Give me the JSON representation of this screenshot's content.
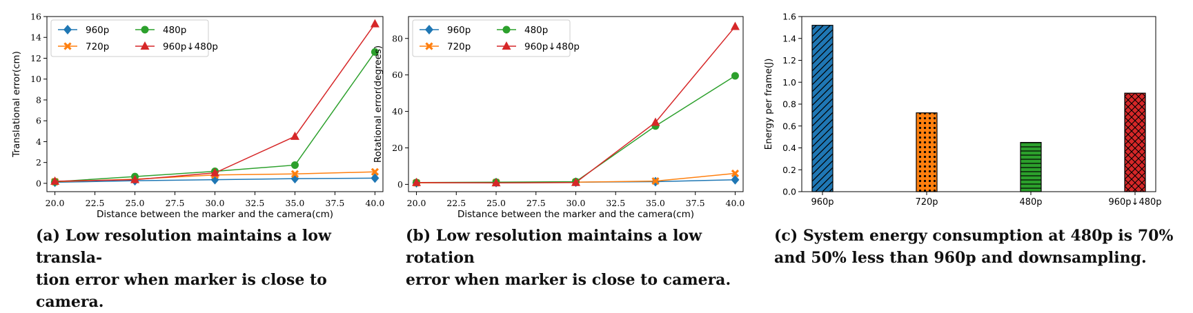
{
  "chart_data": [
    {
      "type": "line",
      "xlabel": "Distance between the marker and the camera(cm)",
      "ylabel": "Translational error(cm)",
      "xlim": [
        19.5,
        40.5
      ],
      "ylim": [
        -0.8,
        16
      ],
      "xticks": [
        "20.0",
        "22.5",
        "25.0",
        "27.5",
        "30.0",
        "32.5",
        "35.0",
        "37.5",
        "40.0"
      ],
      "yticks": [
        "0",
        "2",
        "4",
        "6",
        "8",
        "10",
        "12",
        "14",
        "16"
      ],
      "grid": false,
      "legend": "top-left",
      "x": [
        20,
        25,
        30,
        35,
        40
      ],
      "series": [
        {
          "name": "960p",
          "color": "#1f77b4",
          "marker": "diamond",
          "values": [
            0.1,
            0.25,
            0.35,
            0.45,
            0.5
          ]
        },
        {
          "name": "720p",
          "color": "#ff7f0e",
          "marker": "x",
          "values": [
            0.15,
            0.4,
            0.8,
            0.9,
            1.1
          ]
        },
        {
          "name": "480p",
          "color": "#2ca02c",
          "marker": "circle",
          "values": [
            0.15,
            0.65,
            1.15,
            1.75,
            12.6
          ]
        },
        {
          "name": "960p↓480p",
          "color": "#d62728",
          "marker": "triangle",
          "values": [
            0.2,
            0.35,
            1.0,
            4.5,
            15.3
          ]
        }
      ]
    },
    {
      "type": "line",
      "xlabel": "Distance between the marker and the camera(cm)",
      "ylabel": "Rotational error(degrees)",
      "xlim": [
        19.5,
        40.5
      ],
      "ylim": [
        -4,
        92
      ],
      "xticks": [
        "20.0",
        "22.5",
        "25.0",
        "27.5",
        "30.0",
        "32.5",
        "35.0",
        "37.5",
        "40.0"
      ],
      "yticks": [
        "0",
        "20",
        "40",
        "60",
        "80"
      ],
      "grid": false,
      "legend": "top-left",
      "x": [
        20,
        25,
        30,
        35,
        40
      ],
      "series": [
        {
          "name": "960p",
          "color": "#1f77b4",
          "marker": "diamond",
          "values": [
            0.8,
            1.0,
            1.2,
            1.5,
            2.5
          ]
        },
        {
          "name": "720p",
          "color": "#ff7f0e",
          "marker": "x",
          "values": [
            0.8,
            1.0,
            1.2,
            1.8,
            6.0
          ]
        },
        {
          "name": "480p",
          "color": "#2ca02c",
          "marker": "circle",
          "values": [
            1.0,
            1.2,
            1.5,
            32.0,
            59.5
          ]
        },
        {
          "name": "960p↓480p",
          "color": "#d62728",
          "marker": "triangle",
          "values": [
            1.0,
            0.8,
            1.0,
            34.0,
            86.5
          ]
        }
      ]
    },
    {
      "type": "bar",
      "ylabel": "Energy per frame(J)",
      "ylim": [
        0,
        1.6
      ],
      "yticks": [
        "0.0",
        "0.2",
        "0.4",
        "0.6",
        "0.8",
        "1.0",
        "1.2",
        "1.4",
        "1.6"
      ],
      "grid": false,
      "categories": [
        "960p",
        "720p",
        "480p",
        "960p↓480p"
      ],
      "values": [
        1.52,
        0.72,
        0.45,
        0.9
      ],
      "colors": [
        "#1f77b4",
        "#ff7f0e",
        "#2ca02c",
        "#d62728"
      ],
      "hatches": [
        "diagonal",
        "dots",
        "horizontal",
        "crosshatch"
      ]
    }
  ],
  "captions": [
    {
      "line1": "(a) Low resolution maintains a low transla-",
      "line2": "tion error when marker is close to camera."
    },
    {
      "line1": "(b) Low resolution maintains a low rotation",
      "line2": "error when marker is close to camera."
    },
    {
      "line1": "(c) System energy consumption at 480p is 70%",
      "line2": "and 50% less than 960p and downsampling."
    }
  ]
}
